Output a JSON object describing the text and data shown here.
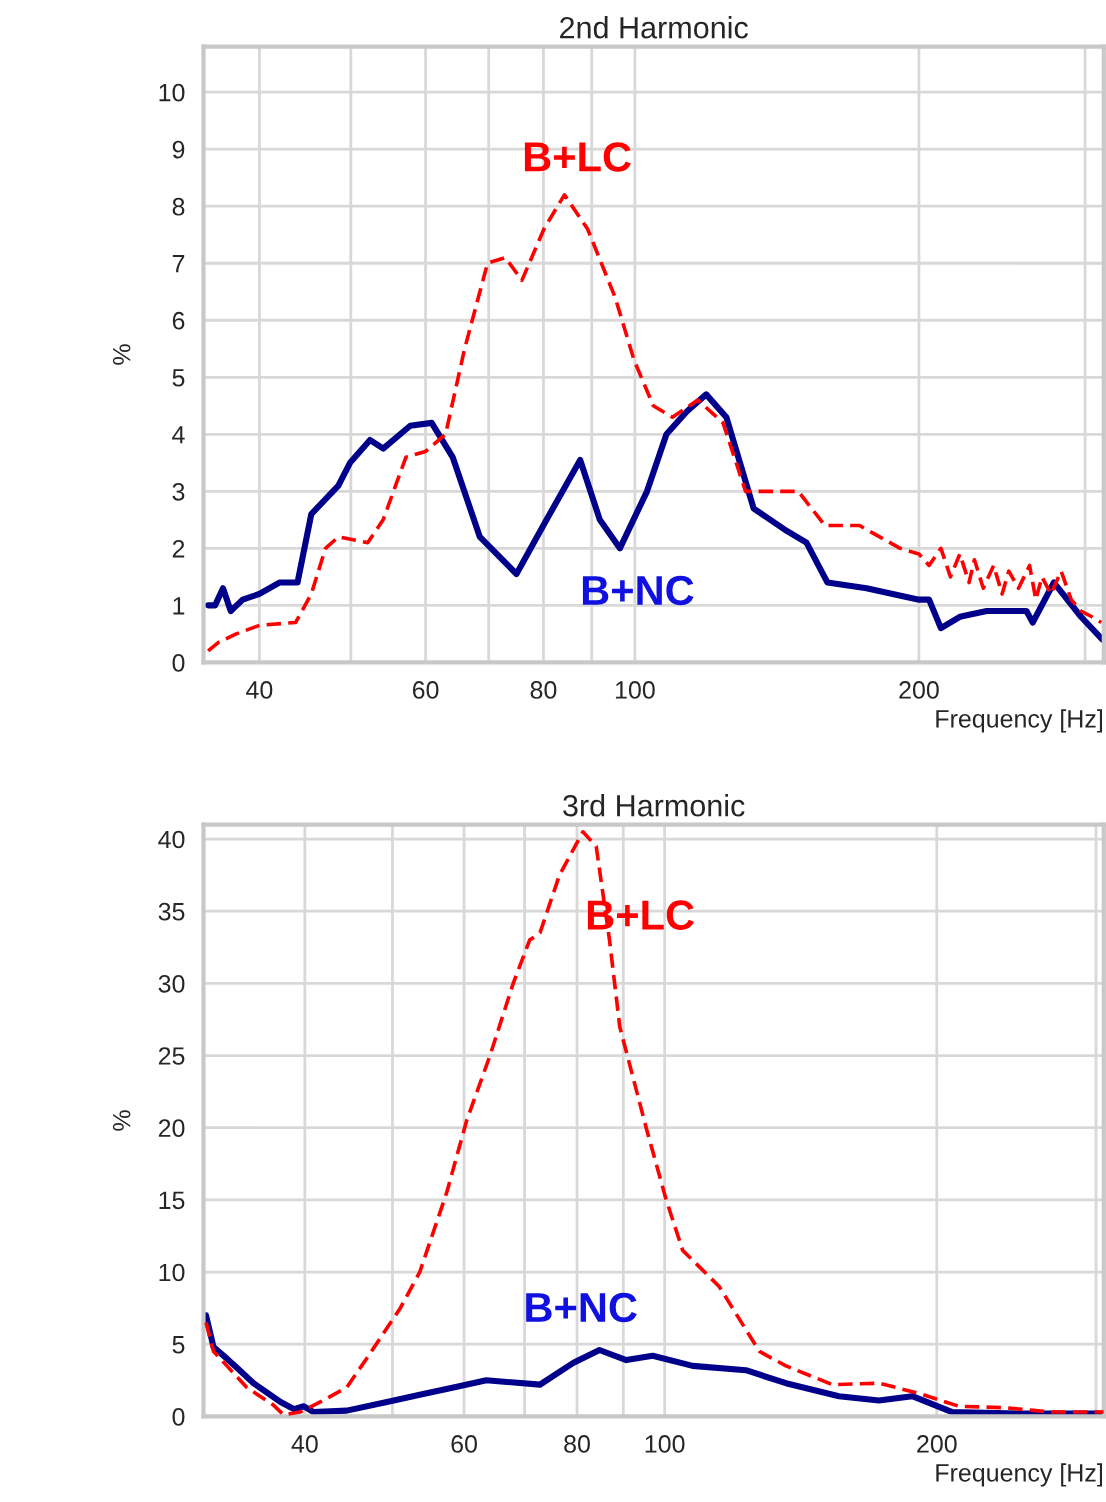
{
  "chart_data": [
    {
      "type": "line",
      "title": "2nd Harmonic",
      "xlabel": "Frequency [Hz]",
      "ylabel": "%",
      "log": "x",
      "grid": true,
      "xlim": [
        34.9,
        314
      ],
      "ylim": [
        0,
        10.8
      ],
      "xticks": [
        40,
        {
          "value": 50,
          "label": null
        },
        60,
        {
          "value": 70,
          "label": null
        },
        80,
        {
          "value": 90,
          "label": null
        },
        100,
        200,
        {
          "value": 300,
          "label": null
        }
      ],
      "yticks": [
        0,
        1,
        2,
        3,
        4,
        5,
        6,
        7,
        8,
        9,
        10
      ],
      "series": [
        {
          "name": "B+LC",
          "color": "#ff0000",
          "line_style": "dashed",
          "x": [
            35.3,
            36.2,
            37.8,
            40,
            43.7,
            45.4,
            47,
            48.5,
            52.1,
            54.1,
            57.2,
            60,
            63,
            66,
            69.8,
            72.9,
            75.9,
            80.1,
            84.2,
            89.1,
            95.3,
            99.8,
            104.6,
            109.6,
            116.6,
            124,
            131,
            149,
            159,
            173,
            191,
            200,
            205,
            211,
            216,
            221,
            226,
            229,
            234,
            240,
            245,
            249,
            255,
            262,
            266,
            270,
            276,
            283,
            290,
            297,
            305,
            312
          ],
          "values": [
            0.2,
            0.35,
            0.5,
            0.65,
            0.7,
            1.2,
            2.0,
            2.2,
            2.1,
            2.5,
            3.6,
            3.7,
            4.0,
            5.5,
            7.0,
            7.1,
            6.7,
            7.6,
            8.2,
            7.6,
            6.4,
            5.3,
            4.5,
            4.3,
            4.6,
            4.2,
            3.0,
            3.0,
            2.4,
            2.4,
            2.0,
            1.9,
            1.7,
            2.0,
            1.5,
            1.9,
            1.4,
            1.8,
            1.3,
            1.7,
            1.2,
            1.6,
            1.3,
            1.7,
            1.1,
            1.5,
            1.2,
            1.6,
            1.1,
            0.9,
            0.8,
            0.7
          ]
        },
        {
          "name": "B+NC",
          "color": "#00008b",
          "line_style": "solid",
          "x": [
            35.3,
            35.9,
            36.6,
            37.3,
            38.4,
            40,
            42,
            43.9,
            45.4,
            48.5,
            49.9,
            52.4,
            54.1,
            57.8,
            60.9,
            64.1,
            68.5,
            74.9,
            80.6,
            87.5,
            91.8,
            96.4,
            103,
            108,
            113.5,
            119,
            125,
            133.6,
            145,
            152,
            160,
            176,
            200,
            205,
            211,
            221,
            236,
            260,
            264,
            278,
            297,
            313
          ],
          "values": [
            1.0,
            1.0,
            1.3,
            0.9,
            1.1,
            1.2,
            1.4,
            1.4,
            2.6,
            3.1,
            3.5,
            3.9,
            3.75,
            4.15,
            4.2,
            3.6,
            2.2,
            1.55,
            2.5,
            3.55,
            2.5,
            2.0,
            3.0,
            4.0,
            4.4,
            4.7,
            4.3,
            2.7,
            2.3,
            2.1,
            1.4,
            1.3,
            1.1,
            1.1,
            0.6,
            0.8,
            0.9,
            0.9,
            0.7,
            1.4,
            0.8,
            0.4
          ]
        }
      ]
    },
    {
      "type": "line",
      "title": "3rd Harmonic",
      "xlabel": "Frequency [Hz]",
      "ylabel": "%",
      "log": "x",
      "grid": true,
      "xlim": [
        30.9,
        306
      ],
      "ylim": [
        0,
        41
      ],
      "xticks": [
        40,
        {
          "value": 50,
          "label": null
        },
        60,
        {
          "value": 70,
          "label": null
        },
        80,
        {
          "value": 90,
          "label": null
        },
        100,
        200,
        {
          "value": 300,
          "label": null
        }
      ],
      "yticks": [
        0,
        5,
        10,
        15,
        20,
        25,
        30,
        35,
        40
      ],
      "series": [
        {
          "name": "B+LC",
          "color": "#ff0000",
          "line_style": "dashed",
          "x": [
            31.1,
            31.7,
            32.8,
            34.5,
            36.9,
            37.9,
            39.5,
            41.6,
            44.5,
            46.8,
            51.0,
            53.6,
            57.4,
            60.4,
            64.1,
            68.0,
            70.9,
            72.8,
            76.5,
            81.2,
            84.0,
            86.9,
            89.2,
            95.4,
            100.4,
            104.7,
            114.9,
            127.3,
            136.2,
            153.3,
            172.6,
            191,
            211.6,
            238,
            268,
            306
          ],
          "values": [
            6.5,
            4.5,
            3.5,
            2.0,
            0.8,
            0.1,
            0.3,
            1.0,
            2.0,
            4.0,
            7.5,
            10,
            15.5,
            20.5,
            25,
            30,
            33,
            33.5,
            37.5,
            40.5,
            39.5,
            33,
            27,
            20,
            15,
            11.5,
            9,
            4.5,
            3.5,
            2.2,
            2.3,
            1.6,
            0.7,
            0.6,
            0.3,
            0.3
          ]
        },
        {
          "name": "B+NC",
          "color": "#00008b",
          "line_style": "solid",
          "x": [
            31.1,
            31.7,
            32.8,
            33.6,
            35.1,
            37.6,
            38.9,
            39.9,
            40.9,
            44.5,
            49.3,
            53.6,
            58.4,
            63.5,
            72.8,
            79.2,
            84.7,
            90.7,
            97.0,
            107.4,
            123,
            136.2,
            155.9,
            172.6,
            187.9,
            208,
            246,
            306
          ],
          "values": [
            7.0,
            4.8,
            4.0,
            3.4,
            2.3,
            1.0,
            0.5,
            0.7,
            0.3,
            0.4,
            1.0,
            1.5,
            2.0,
            2.5,
            2.2,
            3.7,
            4.6,
            3.9,
            4.2,
            3.5,
            3.2,
            2.3,
            1.4,
            1.1,
            1.4,
            0.3,
            0.2,
            0.2
          ]
        }
      ]
    }
  ]
}
